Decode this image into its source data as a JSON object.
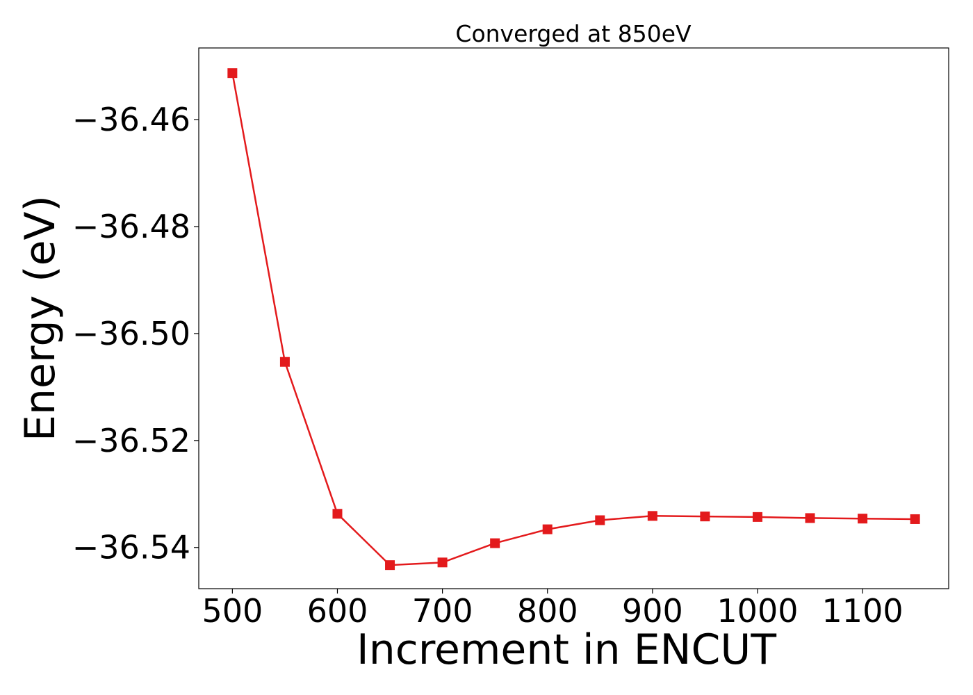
{
  "chart_data": {
    "type": "line",
    "title": "Converged at 850eV",
    "xlabel": "Increment in ENCUT",
    "ylabel": "Energy (eV)",
    "xlim": [
      468,
      1182
    ],
    "ylim": [
      -36.5477,
      -36.4466
    ],
    "xticks": [
      500,
      600,
      700,
      800,
      900,
      1000,
      1100
    ],
    "xtick_labels": [
      "500",
      "600",
      "700",
      "800",
      "900",
      "1000",
      "1100"
    ],
    "yticks": [
      -36.46,
      -36.48,
      -36.5,
      -36.52,
      -36.54
    ],
    "ytick_labels": [
      "−36.46",
      "−36.48",
      "−36.50",
      "−36.52",
      "−36.54"
    ],
    "grid": false,
    "series": [
      {
        "color": "#e31a1c",
        "marker": "square",
        "x": [
          500,
          550,
          600,
          650,
          700,
          750,
          800,
          850,
          900,
          950,
          1000,
          1050,
          1100,
          1150
        ],
        "y": [
          -36.4513,
          -36.5053,
          -36.5337,
          -36.5433,
          -36.5428,
          -36.5392,
          -36.5366,
          -36.5349,
          -36.5341,
          -36.5342,
          -36.5343,
          -36.5345,
          -36.5346,
          -36.5347
        ]
      }
    ]
  }
}
